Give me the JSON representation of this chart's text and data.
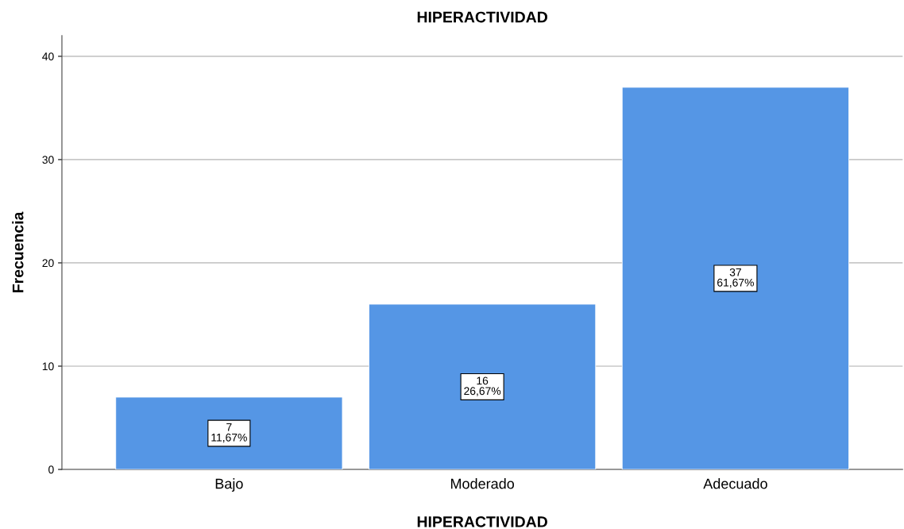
{
  "chart_data": {
    "type": "bar",
    "title": "HIPERACTIVIDAD",
    "xlabel": "HIPERACTIVIDAD",
    "ylabel": "Frecuencia",
    "categories": [
      "Bajo",
      "Moderado",
      "Adecuado"
    ],
    "values": [
      7,
      16,
      37
    ],
    "value_labels": [
      "7\n11,67%",
      "16\n26,67%",
      "37\n61,67%"
    ],
    "color": "#5596e5",
    "ylim": [
      0,
      42
    ],
    "yticks": [
      0,
      10,
      20,
      30,
      40
    ],
    "grid": "y"
  }
}
